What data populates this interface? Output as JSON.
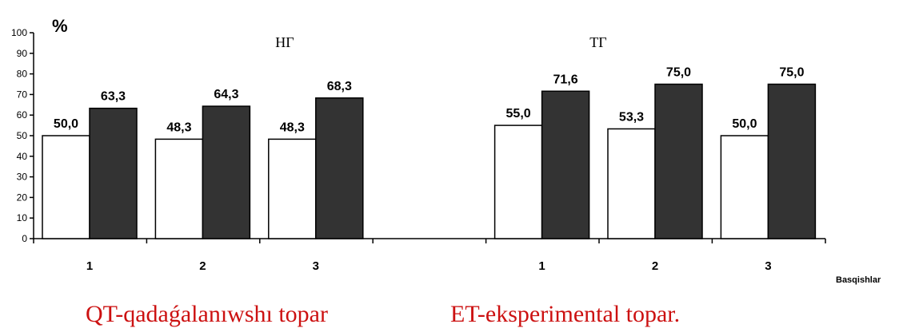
{
  "chart_data": {
    "type": "bar",
    "unit_label": "%",
    "xlabel": "Basqishlar",
    "ylim": [
      0,
      100
    ],
    "yticks": [
      0,
      10,
      20,
      30,
      40,
      50,
      60,
      70,
      80,
      90,
      100
    ],
    "groups": [
      {
        "title": "НГ",
        "categories": [
          "1",
          "2",
          "3"
        ],
        "series": [
          {
            "values": [
              50.0,
              48.3,
              48.3
            ],
            "labels": [
              "50,0",
              "48,3",
              "48,3"
            ],
            "color": "#ffffff"
          },
          {
            "values": [
              63.3,
              64.3,
              68.3
            ],
            "labels": [
              "63,3",
              "64,3",
              "68,3"
            ],
            "color": "#333333"
          }
        ]
      },
      {
        "title": "ТГ",
        "categories": [
          "1",
          "2",
          "3"
        ],
        "series": [
          {
            "values": [
              55.0,
              53.3,
              50.0
            ],
            "labels": [
              "55,0",
              "53,3",
              "50,0"
            ],
            "color": "#ffffff"
          },
          {
            "values": [
              71.6,
              75.0,
              75.0
            ],
            "labels": [
              "71,6",
              "75,0",
              "75,0"
            ],
            "color": "#333333"
          }
        ]
      }
    ],
    "grid": false,
    "legend": "none"
  },
  "captions": {
    "left": "QT-qadaǵalanıwshı topar",
    "right": "ET-eksperimental topar."
  }
}
